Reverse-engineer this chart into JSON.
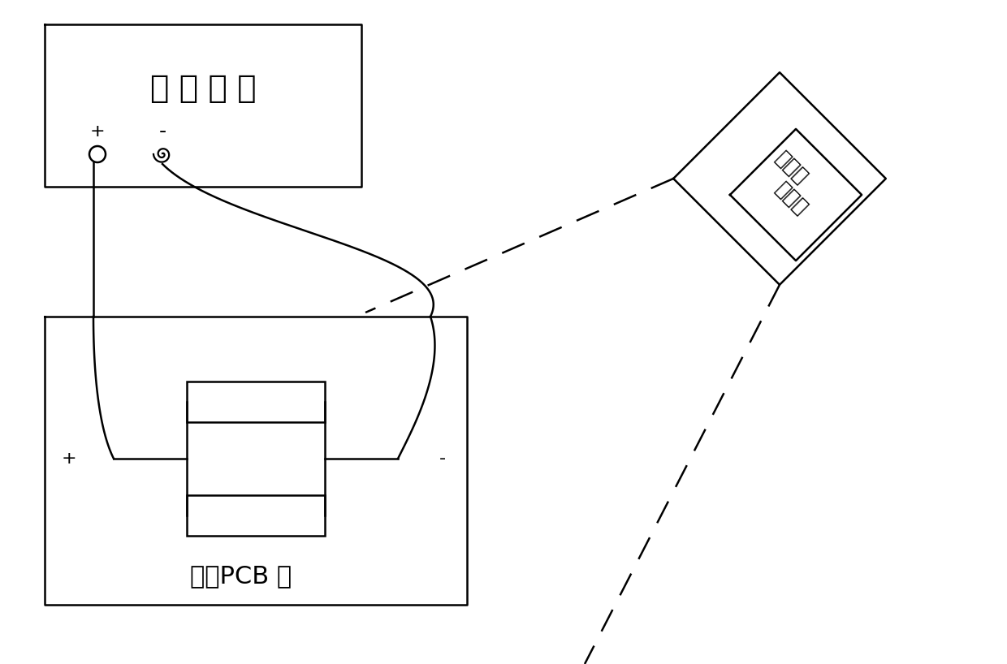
{
  "bg_color": "#ffffff",
  "line_color": "#000000",
  "figsize": [
    12.4,
    8.18
  ],
  "dpi": 100,
  "power_label": "直 流 电 源",
  "pcb_label": "被测PCB 板",
  "thermal_label_line1": "热像处",
  "thermal_label_line2": "理装置"
}
